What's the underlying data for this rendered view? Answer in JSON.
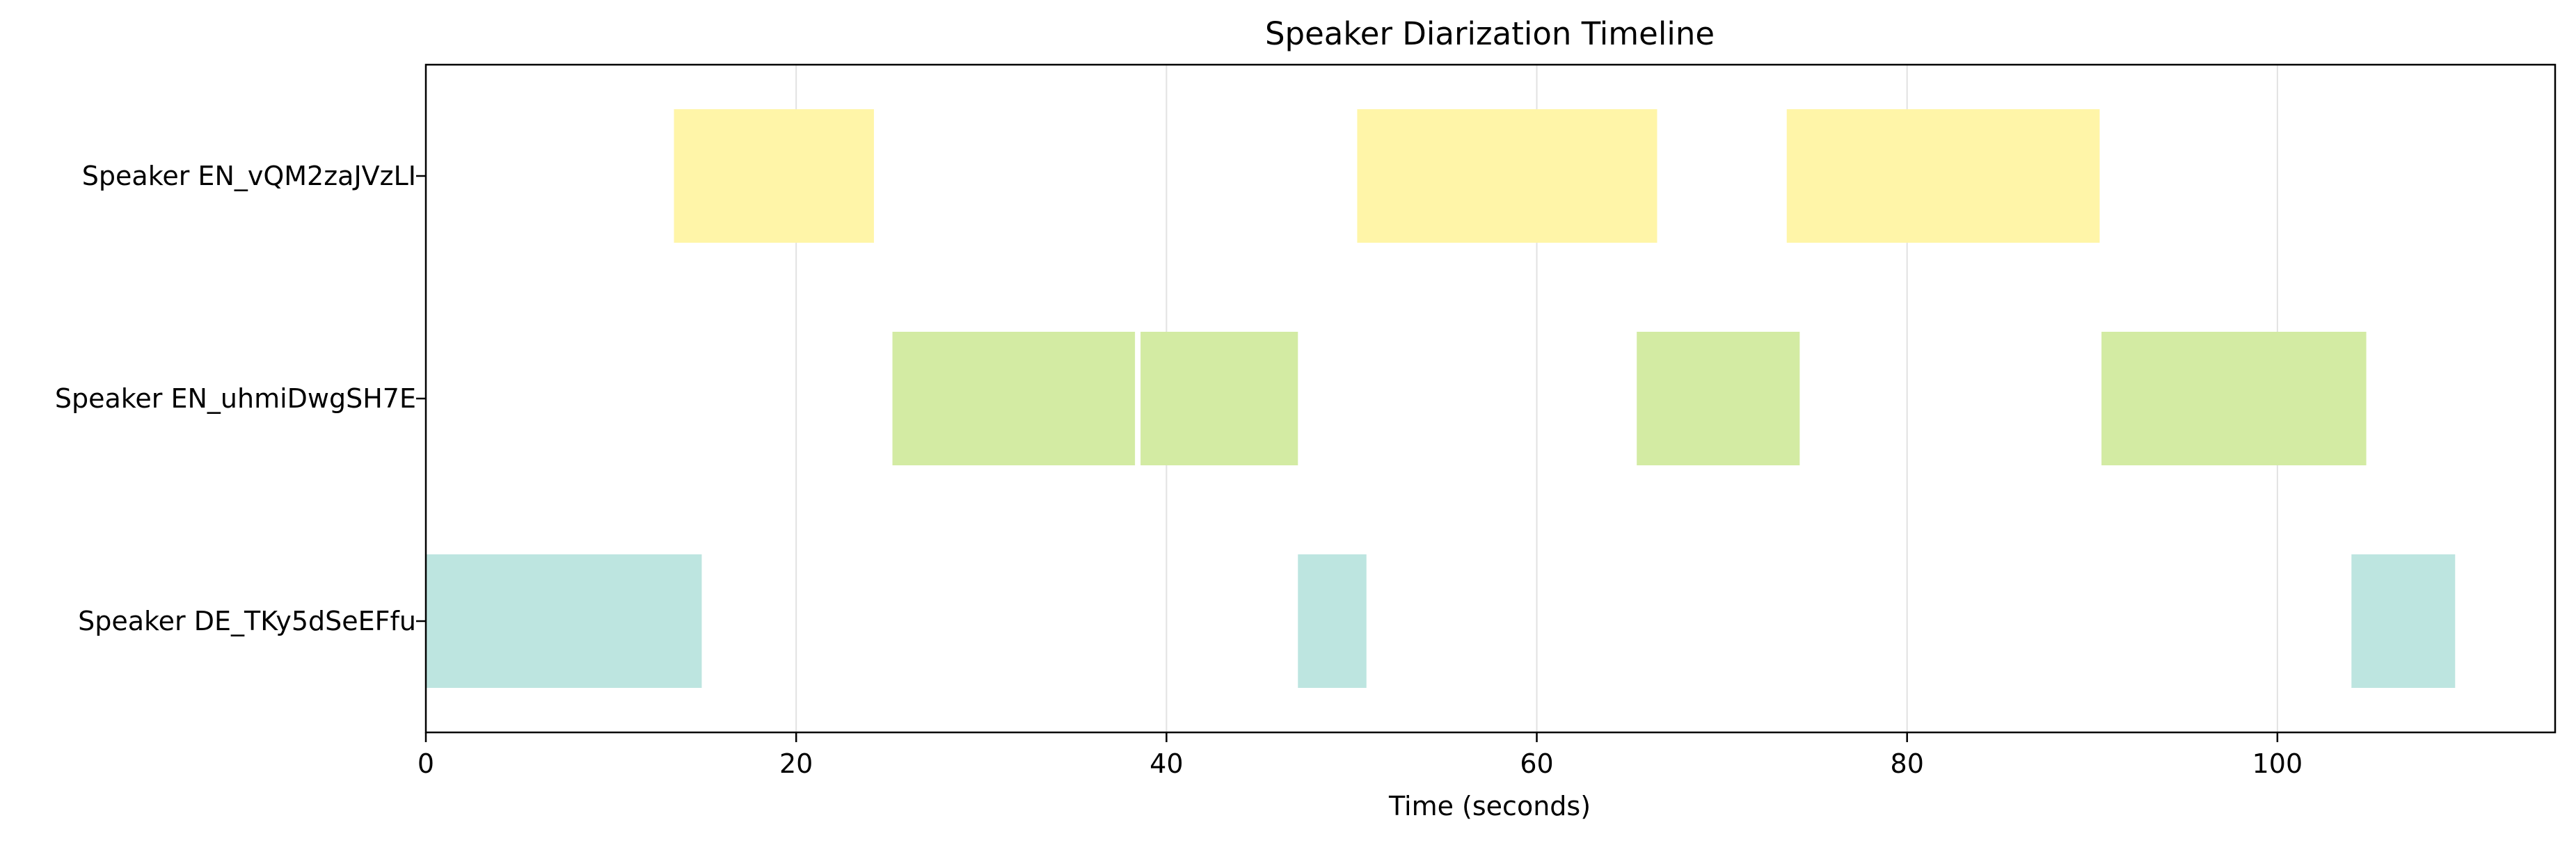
{
  "chart_data": {
    "type": "bar",
    "orientation": "horizontal-timeline",
    "title": "Speaker Diarization Timeline",
    "xlabel": "Time (seconds)",
    "ylabel": "",
    "xlim": [
      0,
      115
    ],
    "xticks": [
      0,
      20,
      40,
      60,
      80,
      100
    ],
    "grid": "x",
    "speakers": [
      {
        "name": "Speaker EN_vQM2zaJVzLI",
        "color": "#fff5a8",
        "segments": [
          [
            13.4,
            24.2
          ],
          [
            50.3,
            66.5
          ],
          [
            73.5,
            90.4
          ]
        ]
      },
      {
        "name": "Speaker EN_uhmiDwgSH7E",
        "color": "#d3eba3",
        "segments": [
          [
            25.2,
            38.3
          ],
          [
            38.6,
            47.1
          ],
          [
            65.4,
            74.2
          ],
          [
            90.5,
            104.8
          ]
        ]
      },
      {
        "name": "Speaker DE_TKy5dSeEFfu",
        "color": "#bde5e0",
        "segments": [
          [
            0,
            14.9
          ],
          [
            47.1,
            50.8
          ],
          [
            104.0,
            109.6
          ]
        ]
      }
    ]
  }
}
